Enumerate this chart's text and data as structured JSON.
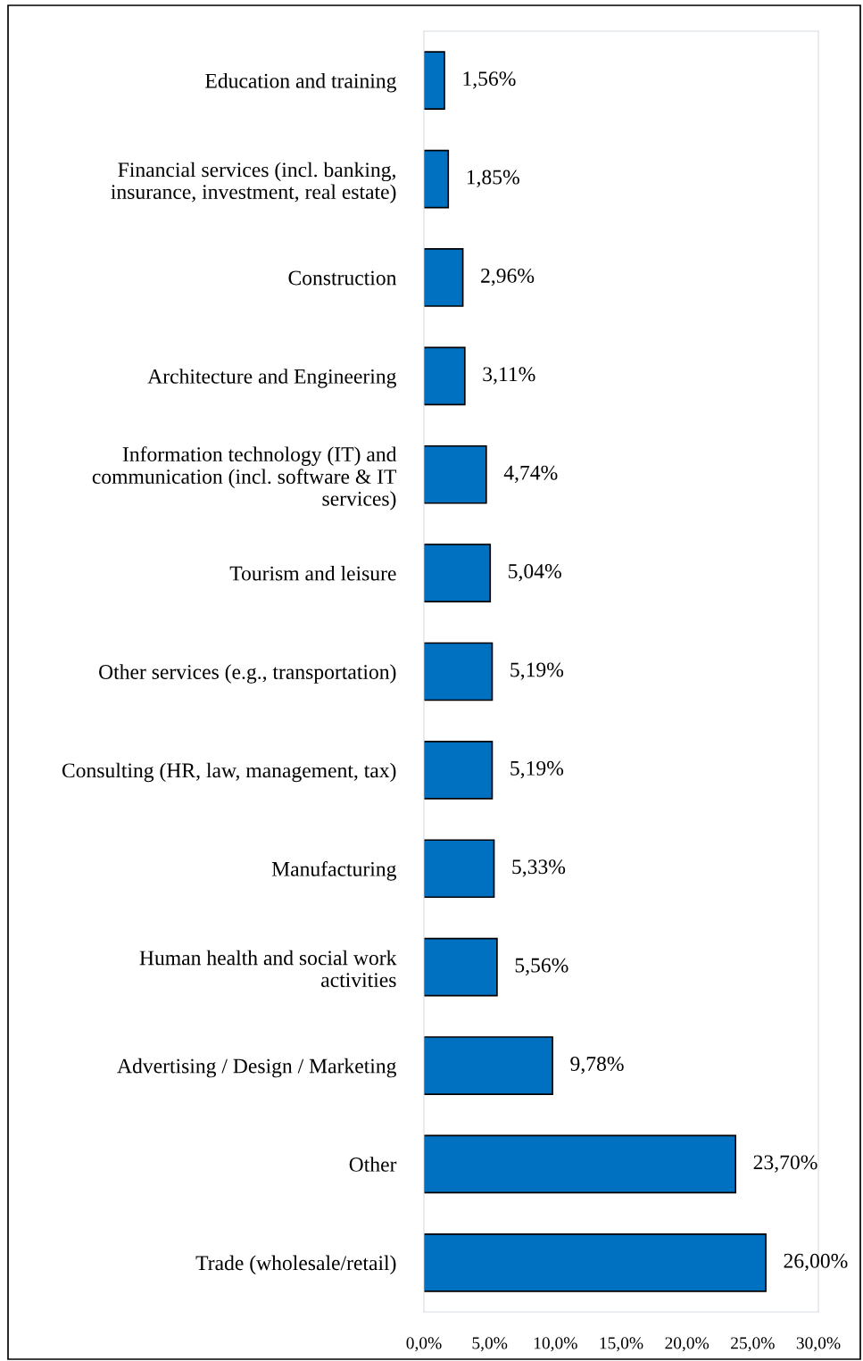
{
  "chart_data": {
    "type": "bar",
    "orientation": "horizontal",
    "categories": [
      "Education and training",
      "Financial services (incl. banking,\ninsurance, investment, real estate)",
      "Construction",
      "Architecture and Engineering",
      "Information technology (IT) and\ncommunication (incl. software & IT\nservices)",
      "Tourism and leisure",
      "Other services (e.g., transportation)",
      "Consulting (HR, law, management, tax)",
      "Manufacturing",
      "Human health and social work\nactivities",
      "Advertising / Design / Marketing",
      "Other",
      "Trade (wholesale/retail)"
    ],
    "values": [
      1.56,
      1.85,
      2.96,
      3.11,
      4.74,
      5.04,
      5.19,
      5.19,
      5.33,
      5.56,
      9.78,
      23.7,
      26.0
    ],
    "value_labels": [
      "1,56%",
      "1,85%",
      "2,96%",
      "3,11%",
      "4,74%",
      "5,04%",
      "5,19%",
      "5,19%",
      "5,33%",
      "5,56%",
      "9,78%",
      "23,70%",
      "26,00%"
    ],
    "color": "#0070c0",
    "xlim": [
      0,
      30
    ],
    "xticks": [
      {
        "value": 0,
        "label": "0,0%"
      },
      {
        "value": 5,
        "label": "5,0%"
      },
      {
        "value": 10,
        "label": "10,0%"
      },
      {
        "value": 15,
        "label": "15,0%"
      },
      {
        "value": 20,
        "label": "20,0%"
      },
      {
        "value": 25,
        "label": "25,0%"
      },
      {
        "value": 30,
        "label": "30,0%"
      }
    ],
    "grid": false,
    "legend": false
  }
}
